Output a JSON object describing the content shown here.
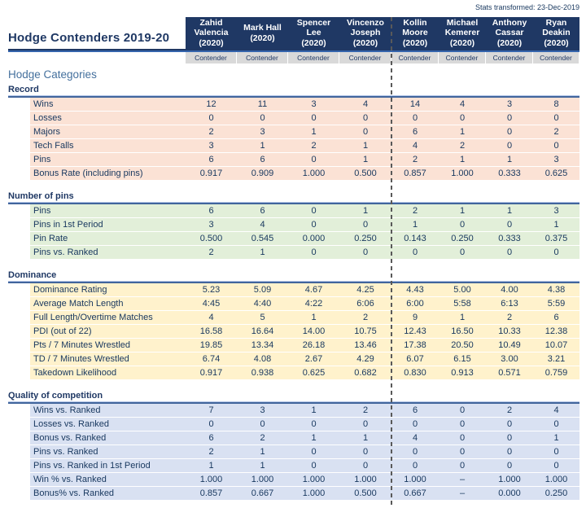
{
  "note": "Stats transformed: 23-Dec-2019",
  "title": "Hodge Contenders 2019-20",
  "categories_heading": "Hodge Categories",
  "colors": {
    "header_bg": "#1F3864",
    "header_text": "#FFFFFF",
    "contender_bg": "#D9D9D9",
    "rule_dark": "#1F3864",
    "rule_blue": "#3565AD",
    "section_rule": "#41659C",
    "heading_blue": "#44709D",
    "divider_gray": "#595959",
    "record_bg": "#FBE2D5",
    "pins_bg": "#E2EFD9",
    "dominance_bg": "#FFF2CC",
    "quality_bg": "#D9E1F2"
  },
  "columns": [
    {
      "name": "Zahid Valencia",
      "year": "(2020)",
      "tag": "Contender"
    },
    {
      "name": "Mark Hall",
      "year": "(2020)",
      "tag": "Contender"
    },
    {
      "name": "Spencer Lee",
      "year": "(2020)",
      "tag": "Contender"
    },
    {
      "name": "Vincenzo Joseph",
      "year": "(2020)",
      "tag": "Contender"
    },
    {
      "name": "Kollin Moore",
      "year": "(2020)",
      "tag": "Contender"
    },
    {
      "name": "Michael Kemerer",
      "year": "(2020)",
      "tag": "Contender"
    },
    {
      "name": "Anthony Cassar",
      "year": "(2020)",
      "tag": "Contender"
    },
    {
      "name": "Ryan Deakin",
      "year": "(2020)",
      "tag": "Contender"
    }
  ],
  "sections": [
    {
      "name": "Record",
      "bg": "#FBE2D5",
      "rows": [
        {
          "label": "Wins",
          "values": [
            "12",
            "11",
            "3",
            "4",
            "14",
            "4",
            "3",
            "8"
          ]
        },
        {
          "label": "Losses",
          "values": [
            "0",
            "0",
            "0",
            "0",
            "0",
            "0",
            "0",
            "0"
          ]
        },
        {
          "label": "Majors",
          "values": [
            "2",
            "3",
            "1",
            "0",
            "6",
            "1",
            "0",
            "2"
          ]
        },
        {
          "label": "Tech Falls",
          "values": [
            "3",
            "1",
            "2",
            "1",
            "4",
            "2",
            "0",
            "0"
          ]
        },
        {
          "label": "Pins",
          "values": [
            "6",
            "6",
            "0",
            "1",
            "2",
            "1",
            "1",
            "3"
          ]
        },
        {
          "label": "Bonus Rate (including pins)",
          "values": [
            "0.917",
            "0.909",
            "1.000",
            "0.500",
            "0.857",
            "1.000",
            "0.333",
            "0.625"
          ]
        }
      ]
    },
    {
      "name": "Number of pins",
      "bg": "#E2EFD9",
      "rows": [
        {
          "label": "Pins",
          "values": [
            "6",
            "6",
            "0",
            "1",
            "2",
            "1",
            "1",
            "3"
          ]
        },
        {
          "label": "Pins in 1st Period",
          "values": [
            "3",
            "4",
            "0",
            "0",
            "1",
            "0",
            "0",
            "1"
          ]
        },
        {
          "label": "Pin Rate",
          "values": [
            "0.500",
            "0.545",
            "0.000",
            "0.250",
            "0.143",
            "0.250",
            "0.333",
            "0.375"
          ]
        },
        {
          "label": "Pins vs. Ranked",
          "values": [
            "2",
            "1",
            "0",
            "0",
            "0",
            "0",
            "0",
            "0"
          ]
        }
      ]
    },
    {
      "name": "Dominance",
      "bg": "#FFF2CC",
      "rows": [
        {
          "label": "Dominance Rating",
          "values": [
            "5.23",
            "5.09",
            "4.67",
            "4.25",
            "4.43",
            "5.00",
            "4.00",
            "4.38"
          ]
        },
        {
          "label": "Average Match Length",
          "values": [
            "4:45",
            "4:40",
            "4:22",
            "6:06",
            "6:00",
            "5:58",
            "6:13",
            "5:59"
          ]
        },
        {
          "label": "Full Length/Overtime Matches",
          "values": [
            "4",
            "5",
            "1",
            "2",
            "9",
            "1",
            "2",
            "6"
          ]
        },
        {
          "label": "PDI (out of 22)",
          "values": [
            "16.58",
            "16.64",
            "14.00",
            "10.75",
            "12.43",
            "16.50",
            "10.33",
            "12.38"
          ]
        },
        {
          "label": "Pts / 7 Minutes Wrestled",
          "values": [
            "19.85",
            "13.34",
            "26.18",
            "13.46",
            "17.38",
            "20.50",
            "10.49",
            "10.07"
          ]
        },
        {
          "label": "TD / 7 Minutes Wrestled",
          "values": [
            "6.74",
            "4.08",
            "2.67",
            "4.29",
            "6.07",
            "6.15",
            "3.00",
            "3.21"
          ]
        },
        {
          "label": "Takedown Likelihood",
          "values": [
            "0.917",
            "0.938",
            "0.625",
            "0.682",
            "0.830",
            "0.913",
            "0.571",
            "0.759"
          ]
        }
      ]
    },
    {
      "name": "Quality of competition",
      "bg": "#D9E1F2",
      "rows": [
        {
          "label": "Wins vs. Ranked",
          "values": [
            "7",
            "3",
            "1",
            "2",
            "6",
            "0",
            "2",
            "4"
          ]
        },
        {
          "label": "Losses vs. Ranked",
          "values": [
            "0",
            "0",
            "0",
            "0",
            "0",
            "0",
            "0",
            "0"
          ]
        },
        {
          "label": "Bonus vs. Ranked",
          "values": [
            "6",
            "2",
            "1",
            "1",
            "4",
            "0",
            "0",
            "1"
          ]
        },
        {
          "label": "Pins vs. Ranked",
          "values": [
            "2",
            "1",
            "0",
            "0",
            "0",
            "0",
            "0",
            "0"
          ]
        },
        {
          "label": "Pins vs. Ranked in 1st Period",
          "values": [
            "1",
            "1",
            "0",
            "0",
            "0",
            "0",
            "0",
            "0"
          ]
        },
        {
          "label": "Win % vs. Ranked",
          "values": [
            "1.000",
            "1.000",
            "1.000",
            "1.000",
            "1.000",
            "–",
            "1.000",
            "1.000"
          ]
        },
        {
          "label": "Bonus% vs. Ranked",
          "values": [
            "0.857",
            "0.667",
            "1.000",
            "0.500",
            "0.667",
            "–",
            "0.000",
            "0.250"
          ]
        }
      ]
    }
  ]
}
